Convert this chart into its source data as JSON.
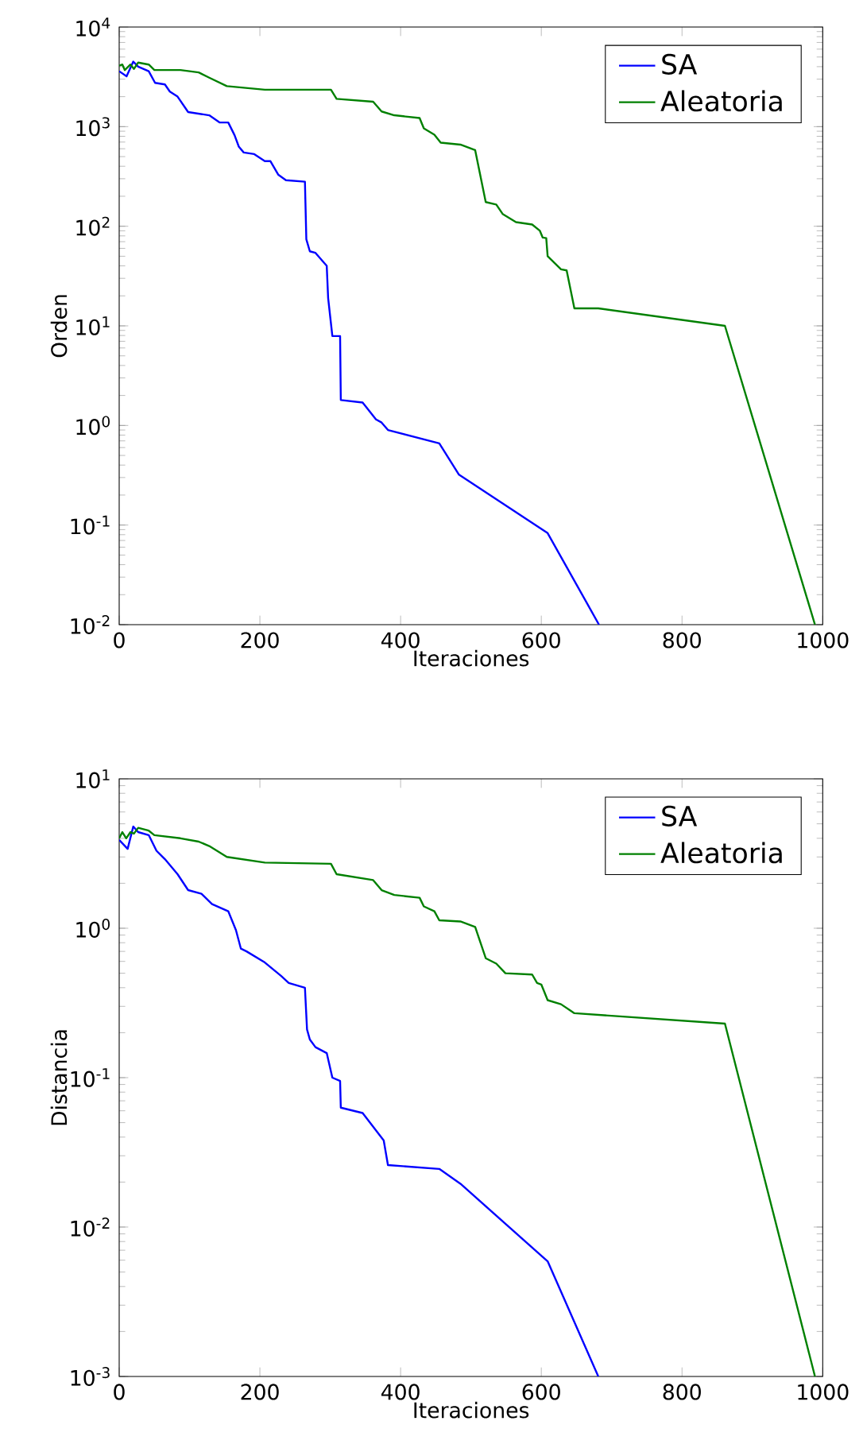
{
  "chart_data": [
    {
      "type": "line",
      "xlabel": "Iteraciones",
      "ylabel": "Orden",
      "log": "y",
      "legend": "top right",
      "xlim": [
        0,
        1000
      ],
      "xticks": [
        0,
        200,
        400,
        600,
        800,
        1000
      ],
      "ylim": [
        0.01,
        10000
      ],
      "yticks": [
        {
          "value": 0.01,
          "label": "10$^{-2}$"
        },
        {
          "value": 0.1,
          "label": "10$^{-1}$"
        },
        {
          "value": 1,
          "label": "10$^{0}$"
        },
        {
          "value": 10,
          "label": "10$^{1}$"
        },
        {
          "value": 100,
          "label": "10$^{2}$"
        },
        {
          "value": 1000,
          "label": "10$^{3}$"
        },
        {
          "value": 10000,
          "label": "10$^{4}$"
        }
      ],
      "series": [
        {
          "name": "SA",
          "color": "#0000ff",
          "x": [
            0,
            10.5,
            20,
            27,
            42,
            51,
            65,
            72,
            83,
            98,
            128,
            143,
            155,
            164,
            170,
            177,
            192,
            207,
            215,
            226,
            237,
            264,
            266,
            271,
            279,
            295,
            297,
            303,
            314,
            315,
            346,
            365,
            373,
            382,
            455,
            483,
            609,
            682
          ],
          "values": [
            3600,
            3200,
            4500,
            4000,
            3600,
            2750,
            2650,
            2250,
            2000,
            1400,
            1300,
            1100,
            1100,
            820,
            630,
            550,
            530,
            450,
            450,
            330,
            290,
            280,
            74,
            56,
            54,
            40,
            19,
            7.9,
            7.9,
            1.8,
            1.7,
            1.15,
            1.07,
            0.9,
            0.66,
            0.32,
            0.083,
            0.01
          ]
        },
        {
          "name": "Aleatoria",
          "color": "#008000",
          "x": [
            0,
            4.5,
            8,
            16,
            21,
            27,
            42,
            50,
            87,
            113,
            128,
            153,
            207,
            301,
            309,
            361,
            373,
            391,
            427,
            433,
            448,
            457,
            485,
            506,
            521,
            536,
            545,
            564,
            587,
            598,
            602,
            607,
            609,
            628,
            636,
            647,
            681,
            861,
            989
          ],
          "values": [
            4100,
            4200,
            3700,
            4200,
            3800,
            4400,
            4200,
            3700,
            3700,
            3500,
            3100,
            2550,
            2350,
            2350,
            1900,
            1780,
            1420,
            1300,
            1220,
            960,
            830,
            690,
            660,
            580,
            175,
            165,
            133,
            110,
            104,
            90,
            77,
            76,
            50,
            37,
            36,
            15,
            15,
            10,
            0.01
          ]
        }
      ]
    },
    {
      "type": "line",
      "xlabel": "Iteraciones",
      "ylabel": "Distancia",
      "log": "y",
      "legend": "top right",
      "xlim": [
        0,
        1000
      ],
      "xticks": [
        0,
        200,
        400,
        600,
        800,
        1000
      ],
      "ylim": [
        0.001,
        10
      ],
      "yticks": [
        {
          "value": 0.001,
          "label": "10$^{-3}$"
        },
        {
          "value": 0.01,
          "label": "10$^{-2}$"
        },
        {
          "value": 0.1,
          "label": "10$^{-1}$"
        },
        {
          "value": 1,
          "label": "10$^{0}$"
        },
        {
          "value": 10,
          "label": "10$^{1}$"
        }
      ],
      "series": [
        {
          "name": "SA",
          "color": "#0000ff",
          "x": [
            0,
            12,
            20,
            27,
            42,
            53,
            65,
            83,
            98,
            117,
            132,
            155,
            166,
            173,
            181,
            207,
            230,
            241,
            264,
            267,
            271,
            279,
            295,
            303,
            314,
            315,
            346,
            376,
            382,
            455,
            485,
            609,
            681
          ],
          "values": [
            3.9,
            3.4,
            4.8,
            4.4,
            4.2,
            3.3,
            2.9,
            2.3,
            1.8,
            1.7,
            1.45,
            1.3,
            0.97,
            0.73,
            0.7,
            0.59,
            0.48,
            0.43,
            0.4,
            0.21,
            0.18,
            0.16,
            0.146,
            0.1,
            0.095,
            0.063,
            0.058,
            0.038,
            0.026,
            0.0245,
            0.0195,
            0.0059,
            0.001
          ]
        },
        {
          "name": "Aleatoria",
          "color": "#008000",
          "x": [
            0,
            4.5,
            10,
            16,
            21,
            27,
            42,
            50,
            87,
            113,
            128,
            153,
            207,
            301,
            309,
            361,
            373,
            391,
            427,
            433,
            448,
            455,
            485,
            506,
            521,
            536,
            549,
            587,
            594,
            600,
            609,
            628,
            647,
            861,
            989
          ],
          "values": [
            4.0,
            4.4,
            4.0,
            4.4,
            4.3,
            4.7,
            4.5,
            4.2,
            4.0,
            3.8,
            3.55,
            3.0,
            2.75,
            2.7,
            2.3,
            2.1,
            1.8,
            1.67,
            1.6,
            1.4,
            1.3,
            1.13,
            1.11,
            1.02,
            0.63,
            0.58,
            0.5,
            0.49,
            0.43,
            0.42,
            0.33,
            0.31,
            0.27,
            0.23,
            0.001
          ]
        }
      ]
    }
  ]
}
